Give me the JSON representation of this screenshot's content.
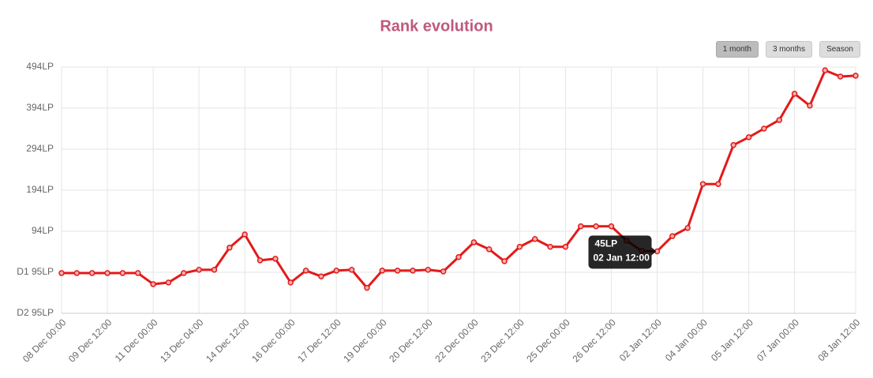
{
  "chart_data": {
    "type": "line",
    "title": "Rank evolution",
    "buttons": [
      "1 month",
      "3 months",
      "Season"
    ],
    "categories": [
      "08 Dec 00:00",
      null,
      null,
      "09 Dec 12:00",
      null,
      null,
      "11 Dec 00:00",
      null,
      null,
      "13 Dec 04:00",
      null,
      null,
      "14 Dec 12:00",
      null,
      null,
      "16 Dec 00:00",
      null,
      null,
      "17 Dec 12:00",
      null,
      null,
      "19 Dec 00:00",
      null,
      null,
      "20 Dec 12:00",
      null,
      null,
      "22 Dec 00:00",
      null,
      null,
      "23 Dec 12:00",
      null,
      null,
      "25 Dec 00:00",
      null,
      null,
      "26 Dec 12:00",
      null,
      null,
      "02 Jan 12:00",
      null,
      null,
      "04 Jan 00:00",
      null,
      null,
      "05 Jan 12:00",
      null,
      null,
      "07 Jan 00:00",
      null,
      null,
      null,
      "08 Jan 12:00"
    ],
    "series": [
      {
        "color": "#e31a1a",
        "values": [
          -8,
          -8,
          -8,
          -8,
          -8,
          -8,
          -35,
          -31,
          -8,
          0,
          0,
          54,
          86,
          23,
          27,
          -31,
          -2,
          -16,
          -2,
          0,
          -44,
          -2,
          -2,
          -2,
          0,
          -4,
          31,
          67,
          50,
          21,
          56,
          75,
          56,
          56,
          106,
          106,
          106,
          71,
          46,
          45,
          82,
          102,
          209,
          209,
          304,
          323,
          344,
          365,
          429,
          400,
          486,
          471,
          473
        ]
      }
    ],
    "ylim": [
      -106,
      494
    ],
    "yticks": [
      {
        "value": -106,
        "label": "D2 95LP"
      },
      {
        "value": -6,
        "label": "D1 95LP"
      },
      {
        "value": 94,
        "label": "94LP"
      },
      {
        "value": 194,
        "label": "194LP"
      },
      {
        "value": 294,
        "label": "294LP"
      },
      {
        "value": 394,
        "label": "394LP"
      },
      {
        "value": 494,
        "label": "494LP"
      }
    ],
    "grid": true,
    "tooltip": {
      "label": "45LP",
      "x": "02 Jan 12:00"
    }
  }
}
